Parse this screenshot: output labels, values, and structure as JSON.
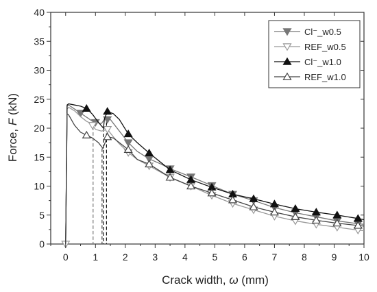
{
  "chart_data": {
    "type": "line",
    "title": "",
    "xlabel_parts": [
      "Crack width, ",
      "ω",
      " (mm)"
    ],
    "ylabel_parts": [
      "Force, ",
      "F",
      " (kN)"
    ],
    "xlim": [
      -0.5,
      10
    ],
    "ylim": [
      0,
      40
    ],
    "xticks": [
      0,
      1,
      2,
      3,
      4,
      5,
      6,
      7,
      8,
      9,
      10
    ],
    "yticks": [
      0,
      5,
      10,
      15,
      20,
      25,
      30,
      35,
      40
    ],
    "grid": false,
    "legend_position": "top-right",
    "series": [
      {
        "name": "Cl⁻_w0.5",
        "color": "#777777",
        "marker": "triangle-down-filled",
        "x": [
          0,
          0.05,
          0.1,
          0.3,
          0.5,
          0.7,
          0.9,
          1.0,
          1.2,
          1.3,
          1.5,
          1.8,
          2.1,
          2.4,
          2.8,
          3.2,
          3.5,
          4.2,
          4.9,
          5.6,
          6.3,
          7.0,
          7.7,
          8.4,
          9.1,
          9.8,
          10.0
        ],
        "y": [
          0,
          23.8,
          24.0,
          23.3,
          22.6,
          21.9,
          21.2,
          21.0,
          20.8,
          21.5,
          21.5,
          19.5,
          17.5,
          16.0,
          14.7,
          13.8,
          13.0,
          11.6,
          10.1,
          8.6,
          7.5,
          6.3,
          5.4,
          4.7,
          4.0,
          3.5,
          3.4
        ],
        "marker_x": [
          0.5,
          1.0,
          1.4,
          2.1,
          2.8,
          3.5,
          4.2,
          4.9,
          5.6,
          6.3,
          7.0,
          7.7,
          8.4,
          9.1,
          9.8
        ]
      },
      {
        "name": "REF_w0.5",
        "color": "#999999",
        "marker": "triangle-down-open",
        "x": [
          0,
          0.05,
          0.1,
          0.3,
          0.5,
          0.7,
          0.85,
          0.9,
          1.0,
          1.2,
          1.4,
          1.6,
          1.8,
          2.1,
          2.4,
          2.8,
          3.5,
          4.2,
          4.9,
          5.6,
          6.3,
          7.0,
          7.7,
          8.4,
          9.1,
          9.8,
          10.0
        ],
        "y": [
          0,
          23.3,
          23.6,
          23.0,
          22.0,
          21.2,
          20.8,
          20.5,
          19.8,
          19.5,
          19.8,
          18.5,
          17.3,
          15.8,
          14.6,
          13.5,
          11.5,
          10.0,
          8.4,
          7.0,
          5.9,
          4.8,
          4.0,
          3.4,
          2.9,
          2.4,
          2.3
        ],
        "marker_x": [
          0,
          0.9,
          1.4,
          2.1,
          2.8,
          3.5,
          4.2,
          4.9,
          5.6,
          6.3,
          7.0,
          7.7,
          8.4,
          9.1,
          9.8
        ]
      },
      {
        "name": "Cl⁻_w1.0",
        "color": "#111111",
        "marker": "triangle-up-filled",
        "x": [
          0,
          0.05,
          0.1,
          0.3,
          0.5,
          0.7,
          0.9,
          1.1,
          1.27,
          1.3,
          1.4,
          1.6,
          1.8,
          2.1,
          2.4,
          2.8,
          3.5,
          4.2,
          4.9,
          5.6,
          6.3,
          7.0,
          7.7,
          8.4,
          9.1,
          9.8,
          10.0
        ],
        "y": [
          0,
          24.0,
          24.2,
          24.0,
          23.8,
          23.4,
          22.4,
          21.0,
          20.0,
          21.6,
          22.9,
          22.5,
          21.5,
          19.0,
          17.5,
          15.7,
          12.8,
          11.1,
          9.8,
          8.6,
          7.8,
          6.9,
          6.1,
          5.5,
          5.0,
          4.4,
          4.2
        ],
        "marker_x": [
          0.7,
          1.4,
          2.1,
          2.8,
          3.5,
          4.2,
          4.9,
          5.6,
          6.3,
          7.0,
          7.7,
          8.4,
          9.1,
          9.8
        ]
      },
      {
        "name": "REF_w1.0",
        "color": "#444444",
        "marker": "triangle-up-open",
        "x": [
          0,
          0.05,
          0.1,
          0.3,
          0.5,
          0.7,
          0.9,
          1.1,
          1.25,
          1.3,
          1.4,
          1.6,
          1.8,
          2.1,
          2.4,
          2.8,
          3.5,
          4.2,
          4.9,
          5.6,
          6.3,
          7.0,
          7.7,
          8.4,
          9.1,
          9.8,
          10.0
        ],
        "y": [
          0,
          22.5,
          22.3,
          20.5,
          19.3,
          18.8,
          18.3,
          17.5,
          16.5,
          17.2,
          18.5,
          18.3,
          17.5,
          16.3,
          14.6,
          13.8,
          11.5,
          10.0,
          8.8,
          7.6,
          6.4,
          5.5,
          4.7,
          4.1,
          3.6,
          3.2,
          3.1
        ],
        "marker_x": [
          0.7,
          1.4,
          2.1,
          2.8,
          3.5,
          4.2,
          4.9,
          5.6,
          6.3,
          7.0,
          7.7,
          8.4,
          9.1,
          9.8
        ]
      }
    ],
    "dashed_markers": [
      {
        "x": 0.92,
        "y_top": 21.2,
        "color": "#777777"
      },
      {
        "x": 1.27,
        "y_top": 20.0,
        "color": "#111111"
      },
      {
        "x": 1.22,
        "y_top": 16.5,
        "color": "#444444"
      },
      {
        "x": 1.37,
        "y_top": 22.9,
        "color": "#111111"
      }
    ]
  }
}
